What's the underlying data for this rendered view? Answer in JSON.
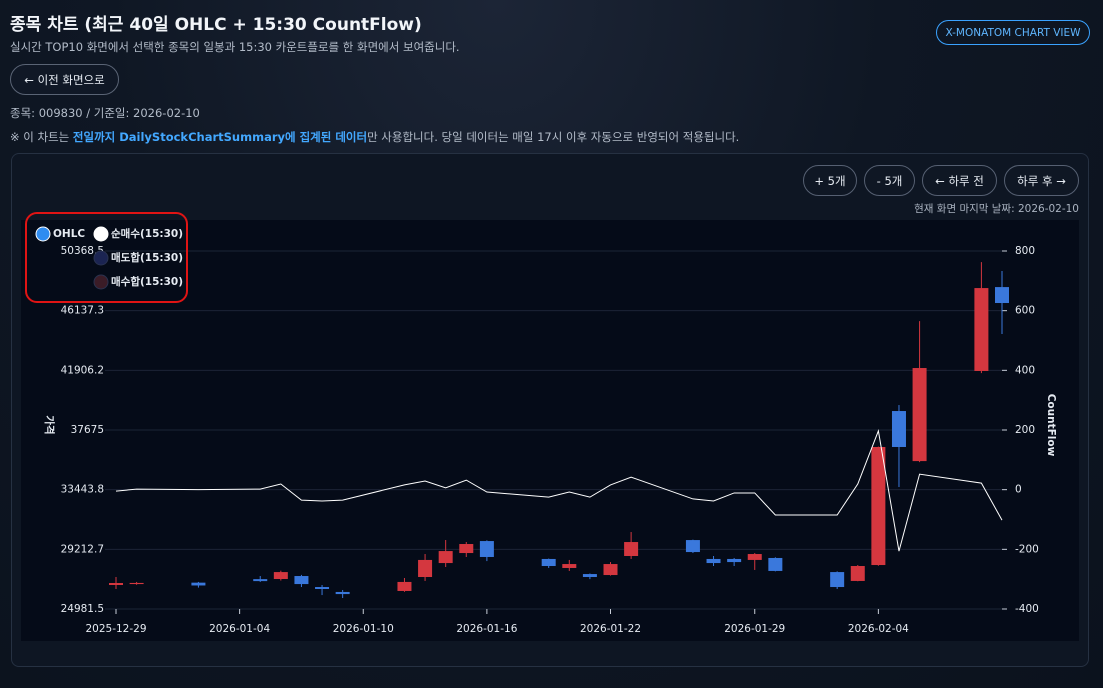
{
  "header": {
    "title": "종목 차트 (최근 40일 OHLC + 15:30 CountFlow)",
    "subtitle": "실시간 TOP10 화면에서 선택한 종목의 일봉과 15:30 카운트플로를 한 화면에서 보여줍니다.",
    "view_button": "X-MONATOM CHART VIEW"
  },
  "back_button": "← 이전 화면으로",
  "info": "종목: 009830 / 기준일: 2026-02-10",
  "notice": {
    "prefix": "※ 이 차트는 ",
    "highlight": "전일까지 DailyStockChartSummary에 집계된 데이터",
    "suffix": "만 사용합니다. 당일 데이터는 매일 17시 이후 자동으로 반영되어 적용됩니다."
  },
  "controls": {
    "buttons": [
      "+ 5개",
      "- 5개",
      "← 하루 전",
      "하루 후 →"
    ],
    "last_date": "현재 화면 마지막 날짜: 2026-02-10"
  },
  "chart_data": {
    "type": "candlestick",
    "ylabel": "가격",
    "y2label": "CountFlow",
    "x": [
      "2025-12-29",
      "2025-12-30",
      "2026-01-02",
      "2026-01-05",
      "2026-01-06",
      "2026-01-07",
      "2026-01-08",
      "2026-01-09",
      "2026-01-12",
      "2026-01-13",
      "2026-01-14",
      "2026-01-15",
      "2026-01-16",
      "2026-01-19",
      "2026-01-20",
      "2026-01-21",
      "2026-01-22",
      "2026-01-23",
      "2026-01-26",
      "2026-01-27",
      "2026-01-28",
      "2026-01-29",
      "2026-01-30",
      "2026-02-02",
      "2026-02-03",
      "2026-02-04",
      "2026-02-05",
      "2026-02-06",
      "2026-02-09",
      "2026-02-10"
    ],
    "xlim": [
      "2025-12-29",
      "2026-02-10"
    ],
    "xticks": [
      "2025-12-29",
      "2026-01-04",
      "2026-01-10",
      "2026-01-16",
      "2026-01-22",
      "2026-01-29",
      "2026-02-04"
    ],
    "ylim": [
      24981.5,
      50368.5
    ],
    "yticks": [
      24981.5,
      29212.7,
      33443.8,
      37675,
      41906.2,
      46137.3,
      50368.5
    ],
    "y2lim": [
      -400,
      800
    ],
    "y2ticks": [
      -400,
      -200,
      0,
      200,
      400,
      600,
      800
    ],
    "grid": true,
    "series": [
      {
        "name": "OHLC",
        "type": "candlestick",
        "color": "#2f8cf0",
        "up_color": "#d4373f",
        "down_color": "#3a78dc",
        "open": [
          26683,
          26750,
          26850,
          27100,
          27108,
          27320,
          26540,
          26190,
          26260,
          27250,
          28240,
          28950,
          29800,
          28530,
          27890,
          27460,
          27390,
          28740,
          29870,
          28530,
          28530,
          28460,
          28600,
          27600,
          26970,
          28100,
          39020,
          35470,
          41860,
          47810
        ],
        "high": [
          27250,
          26900,
          26900,
          27320,
          27700,
          27400,
          26680,
          26330,
          27180,
          28880,
          29874,
          29732,
          29850,
          28560,
          28460,
          27500,
          28310,
          30440,
          29900,
          28740,
          28600,
          28950,
          28650,
          27650,
          28100,
          36500,
          39445,
          45400,
          49580,
          48946
        ],
        "low": [
          26400,
          26700,
          26500,
          26900,
          27000,
          26540,
          25970,
          25760,
          26200,
          26970,
          27960,
          28668,
          28380,
          27890,
          27680,
          27100,
          27350,
          28530,
          28950,
          28030,
          28030,
          27750,
          27650,
          26400,
          26950,
          28050,
          33631,
          35400,
          41710,
          44479
        ],
        "close": [
          26825,
          26830,
          26650,
          26960,
          27600,
          26750,
          26400,
          26040,
          26900,
          28460,
          29090,
          29590,
          28670,
          28030,
          28170,
          27250,
          28170,
          29730,
          29020,
          28240,
          28310,
          28880,
          27680,
          26540,
          28030,
          36470,
          36470,
          42070,
          47740,
          46680
        ]
      },
      {
        "name": "순매수(15:30)",
        "type": "line",
        "axis": "y2",
        "color": "#ffffff",
        "values": [
          -5,
          2,
          0,
          2,
          19,
          -35,
          -38,
          -35,
          16,
          29,
          6,
          32,
          -8,
          -25,
          -8,
          -25,
          16,
          42,
          -31,
          -38,
          -11,
          -11,
          -85,
          -85,
          19,
          197,
          -206,
          52,
          22,
          -102
        ]
      },
      {
        "name": "매도합(15:30)",
        "type": "line",
        "axis": "y2",
        "color": "#1b2452",
        "hidden": true
      },
      {
        "name": "매수합(15:30)",
        "type": "line",
        "axis": "y2",
        "color": "#3b1c27",
        "hidden": true
      }
    ]
  }
}
